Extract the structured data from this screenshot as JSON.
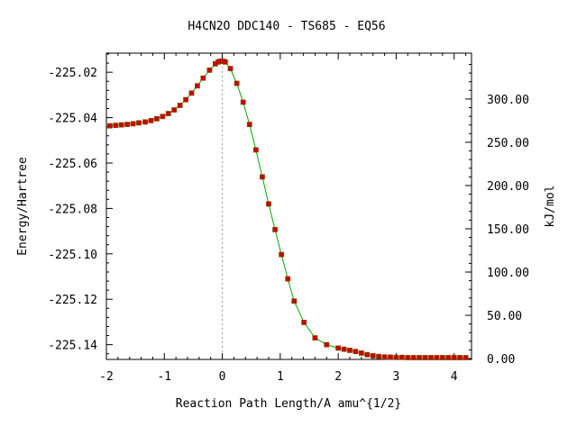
{
  "chart_data": {
    "type": "scatter",
    "title": "H4CN2O   DDC140 - TS685 - EQ56",
    "xlabel": "Reaction Path Length/A amu^{1/2}",
    "ylabel": "Energy/Hartree",
    "y2label": "kJ/mol",
    "xlim": [
      -2.0,
      4.3
    ],
    "ylim": [
      -225.1465,
      -225.0116
    ],
    "y2lim": [
      -1.0,
      353.0
    ],
    "x_ticks": [
      -2,
      -1,
      0,
      1,
      2,
      3,
      4
    ],
    "x_tick_labels": [
      "-2",
      "-1",
      "0",
      "1",
      "2",
      "3",
      "4"
    ],
    "y_ticks": [
      -225.02,
      -225.04,
      -225.06,
      -225.08,
      -225.1,
      -225.12,
      -225.14
    ],
    "y_tick_labels": [
      "-225.02",
      "-225.04",
      "-225.06",
      "-225.08",
      "-225.10",
      "-225.12",
      "-225.14"
    ],
    "y2_ticks": [
      0,
      50,
      100,
      150,
      200,
      250,
      300
    ],
    "y2_tick_labels": [
      "0.00",
      "50.00",
      "100.00",
      "150.00",
      "200.00",
      "250.00",
      "300.00"
    ],
    "ts_marker_x": 0.0,
    "grid": false,
    "colors": {
      "line": "#00aa00",
      "marker": "#cc0000",
      "marker_edge": "#884400",
      "ts_line": "#999999"
    },
    "series": [
      {
        "x": [
          -1.94,
          -1.84,
          -1.74,
          -1.64,
          -1.54,
          -1.44,
          -1.33,
          -1.23,
          -1.13,
          -1.03,
          -0.93,
          -0.83,
          -0.73,
          -0.63,
          -0.53,
          -0.43,
          -0.33,
          -0.22,
          -0.12,
          -0.07,
          -0.04,
          -0.01,
          0.02,
          0.05,
          0.14,
          0.25,
          0.36,
          0.47,
          0.58,
          0.69,
          0.8,
          0.91,
          1.02,
          1.13,
          1.24,
          1.41,
          1.6,
          1.8,
          2.0,
          2.1,
          2.2,
          2.3,
          2.4,
          2.5,
          2.6,
          2.7,
          2.8,
          2.9,
          3.0,
          3.1,
          3.2,
          3.3,
          3.4,
          3.5,
          3.6,
          3.7,
          3.8,
          3.9,
          4.0,
          4.1,
          4.2
        ],
        "y": [
          -225.0436,
          -225.0434,
          -225.0432,
          -225.043,
          -225.0427,
          -225.0423,
          -225.0419,
          -225.0413,
          -225.0405,
          -225.0395,
          -225.0382,
          -225.0366,
          -225.0346,
          -225.0321,
          -225.0292,
          -225.026,
          -225.0226,
          -225.0191,
          -225.0163,
          -225.0155,
          -225.0152,
          -225.0151,
          -225.0152,
          -225.0155,
          -225.0184,
          -225.0249,
          -225.0332,
          -225.043,
          -225.0542,
          -225.0661,
          -225.078,
          -225.0893,
          -225.1003,
          -225.111,
          -225.1208,
          -225.1302,
          -225.137,
          -225.14,
          -225.1415,
          -225.142,
          -225.1425,
          -225.143,
          -225.1437,
          -225.1444,
          -225.1449,
          -225.1452,
          -225.1454,
          -225.1455,
          -225.1456,
          -225.1456,
          -225.1457,
          -225.1457,
          -225.1457,
          -225.1457,
          -225.1457,
          -225.1457,
          -225.1457,
          -225.1457,
          -225.1457,
          -225.1457,
          -225.1457
        ]
      }
    ]
  }
}
